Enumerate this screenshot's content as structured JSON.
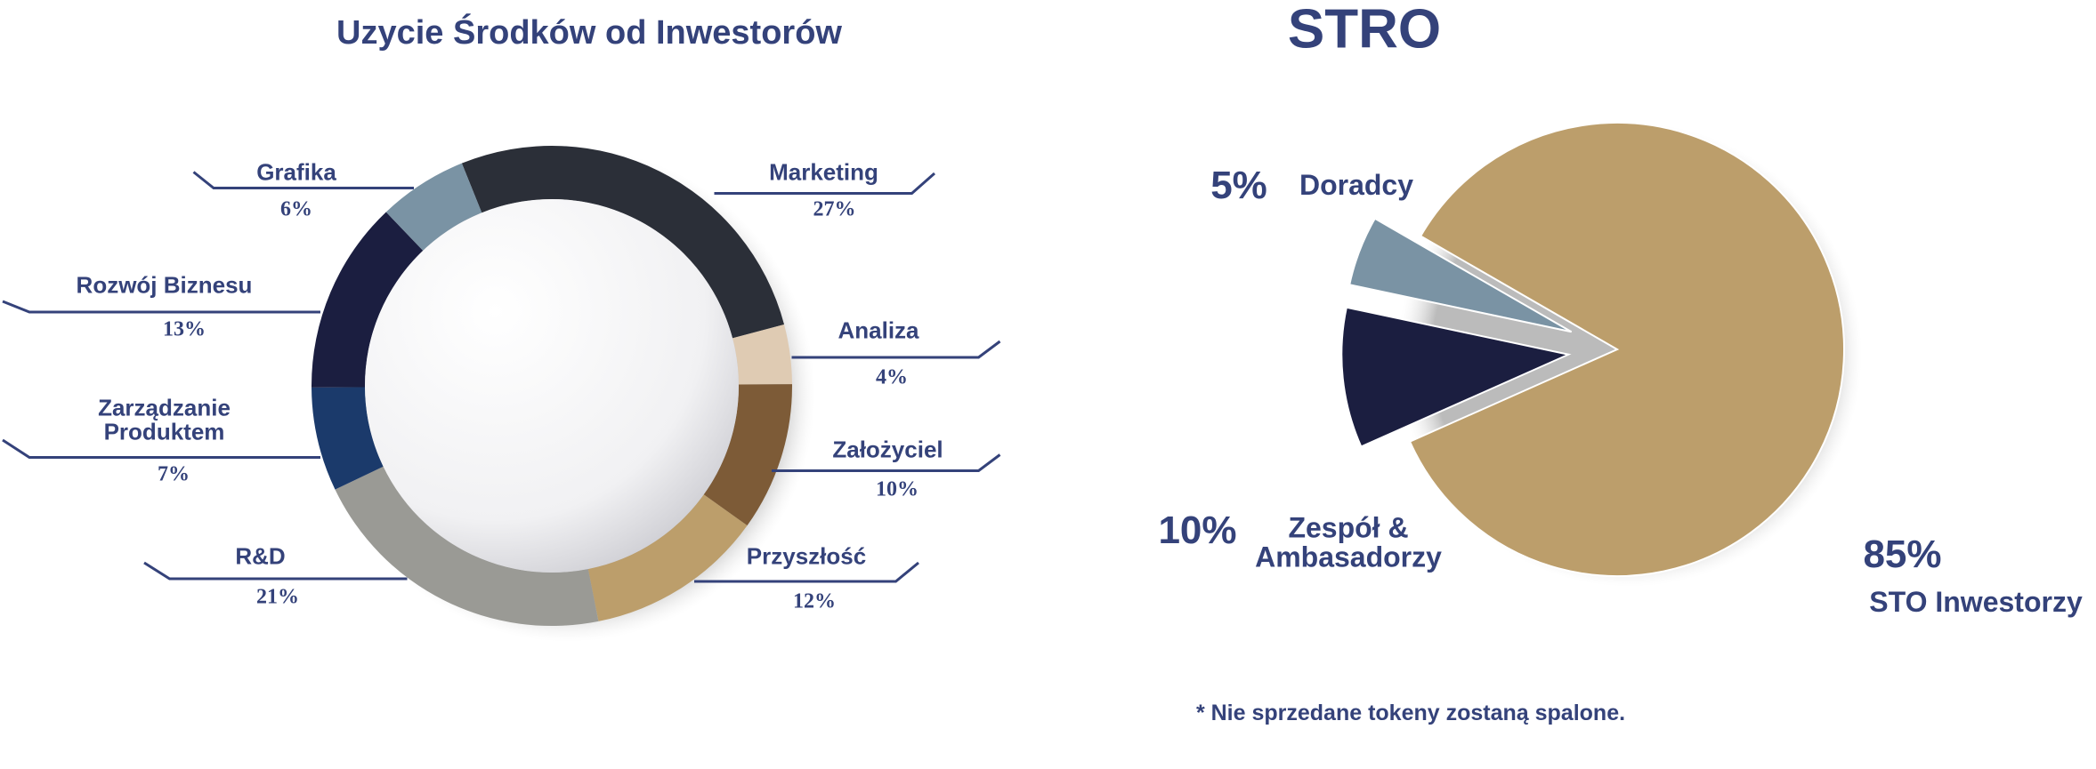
{
  "chart_data": [
    {
      "type": "donut",
      "title": "Uzycie Środków od Inwestorów",
      "categories": [
        "Marketing",
        "Analiza",
        "Założyciel",
        "Przyszłość",
        "R&D",
        "Zarządzanie Produktem",
        "Rozwój Biznesu",
        "Grafika"
      ],
      "values": [
        27,
        4,
        10,
        12,
        21,
        7,
        13,
        6
      ],
      "value_labels": [
        "27%",
        "4%",
        "10%",
        "12%",
        "21%",
        "7%",
        "13%",
        "6%"
      ],
      "colors": [
        "#2b2f38",
        "#dfcbb3",
        "#7d5b37",
        "#bc9e6b",
        "#9a9a95",
        "#1b3a6b",
        "#1b1e40",
        "#7a93a4"
      ]
    },
    {
      "type": "pie",
      "title": "STRO",
      "categories": [
        "STO Inwestorzy",
        "Zespół & Ambasadorzy",
        "Doradcy"
      ],
      "values": [
        85,
        10,
        5
      ],
      "value_labels": [
        "85%",
        "10%",
        "5%"
      ],
      "colors": [
        "#bc9e6b",
        "#1b1e40",
        "#7a93a4"
      ],
      "note": "* Nie sprzedane tokeny zostaną spalone."
    }
  ]
}
